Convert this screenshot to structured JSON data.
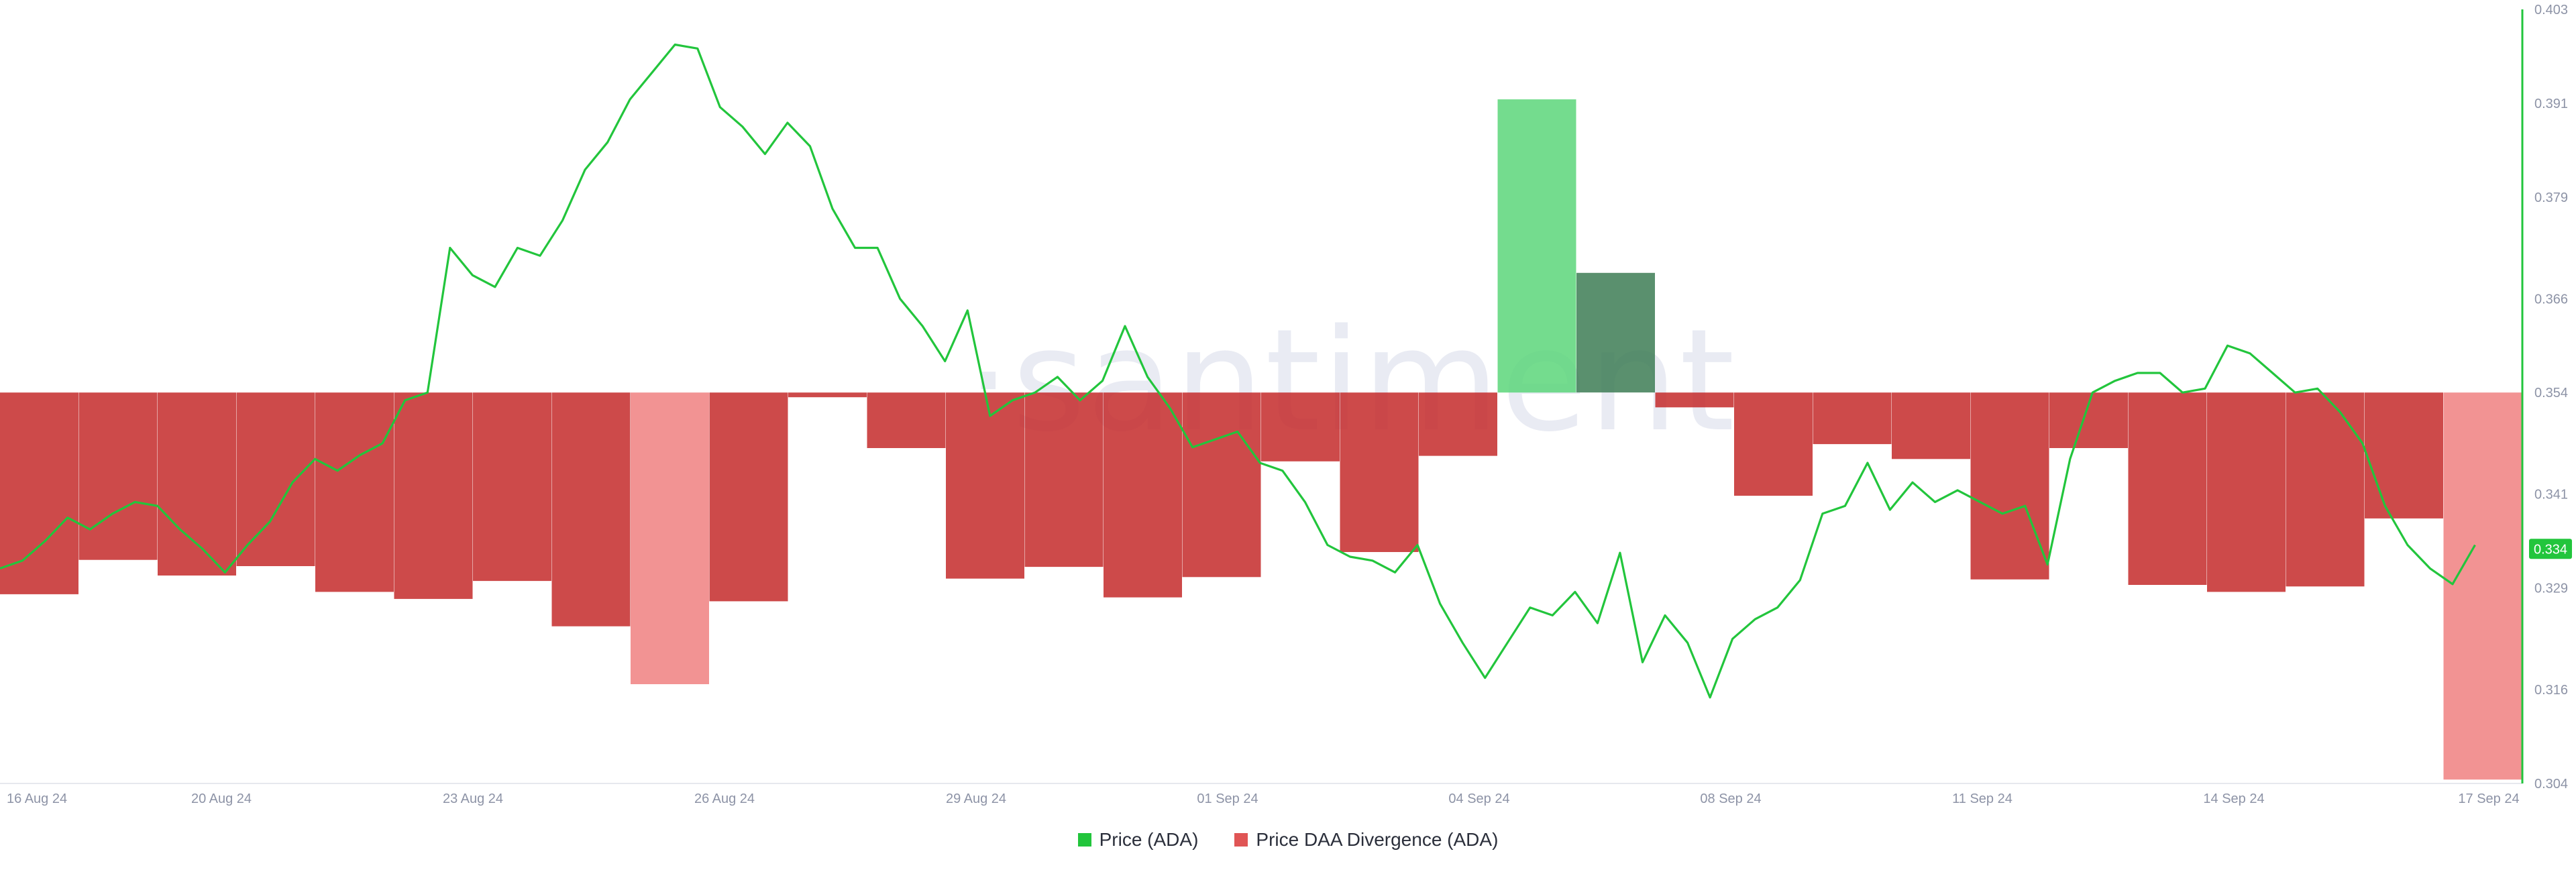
{
  "colors": {
    "price": "#22c53c",
    "divergence_neg": "#c42a2a",
    "divergence_neg_light": "#f08080",
    "divergence_pos": "#5cd67a",
    "divergence_pos_dark": "#3d7d55",
    "axis_text": "#8d93a6",
    "watermark": "#e9ebf3"
  },
  "watermark": "·santiment",
  "chart_data": {
    "type": "bar+line",
    "grid": false,
    "legend_position": "bottom-center",
    "x_ticks": [
      "16 Aug 24",
      "20 Aug 24",
      "23 Aug 24",
      "26 Aug 24",
      "29 Aug 24",
      "01 Sep 24",
      "04 Sep 24",
      "08 Sep 24",
      "11 Sep 24",
      "14 Sep 24",
      "17 Sep 24"
    ],
    "y_axis": {
      "side": "right",
      "ylim": [
        0.304,
        0.403
      ],
      "ticks": [
        "0.403",
        "0.391",
        "0.379",
        "0.366",
        "0.354",
        "0.341",
        "0.329",
        "0.316",
        "0.304"
      ],
      "current_value_label": "0.334"
    },
    "series": [
      {
        "name": "Price (ADA)",
        "kind": "line",
        "x_start_day": 0,
        "x_end_day": 31.4,
        "values": [
          0.3315,
          0.3325,
          0.335,
          0.338,
          0.3365,
          0.3385,
          0.34,
          0.3395,
          0.3365,
          0.334,
          0.331,
          0.3345,
          0.3375,
          0.3425,
          0.3455,
          0.344,
          0.346,
          0.3475,
          0.353,
          0.354,
          0.3725,
          0.369,
          0.3675,
          0.3725,
          0.3715,
          0.376,
          0.3825,
          0.386,
          0.3915,
          0.395,
          0.3985,
          0.398,
          0.3905,
          0.388,
          0.3845,
          0.3885,
          0.3855,
          0.3775,
          0.3725,
          0.3725,
          0.366,
          0.3625,
          0.358,
          0.3645,
          0.351,
          0.353,
          0.354,
          0.356,
          0.353,
          0.3555,
          0.3625,
          0.356,
          0.352,
          0.347,
          0.348,
          0.349,
          0.345,
          0.344,
          0.34,
          0.3345,
          0.333,
          0.3325,
          0.331,
          0.3345,
          0.327,
          0.322,
          0.3175,
          0.322,
          0.3265,
          0.3255,
          0.3285,
          0.3245,
          0.3335,
          0.3195,
          0.3255,
          0.322,
          0.315,
          0.3225,
          0.325,
          0.3265,
          0.33,
          0.3385,
          0.3395,
          0.345,
          0.339,
          0.3425,
          0.34,
          0.3415,
          0.34,
          0.3385,
          0.3395,
          0.332,
          0.3455,
          0.354,
          0.3555,
          0.3565,
          0.3565,
          0.354,
          0.3545,
          0.36,
          0.359,
          0.3565,
          0.354,
          0.3545,
          0.3515,
          0.3475,
          0.3395,
          0.3345,
          0.3315,
          0.3295,
          0.3345
        ]
      },
      {
        "name": "Price DAA Divergence (ADA)",
        "kind": "bar",
        "baseline": 0.354,
        "bar_width_days": 1,
        "x_start_day": 0,
        "values": [
          0.3282,
          0.3326,
          0.3306,
          0.3318,
          0.3285,
          0.3276,
          0.3299,
          0.3241,
          0.3167,
          0.3273,
          0.3534,
          0.3469,
          0.3302,
          0.3317,
          0.3278,
          0.3304,
          0.3452,
          0.3336,
          0.3459,
          0.3915,
          0.3693,
          0.3521,
          0.3408,
          0.3474,
          0.3455,
          0.3301,
          0.3469,
          0.3294,
          0.3285,
          0.3292,
          0.3379,
          0.3045
        ],
        "highlight": {
          "light_red_index": [
            8,
            31
          ],
          "dark_green_index": [
            20
          ]
        }
      }
    ],
    "legend": [
      "Price (ADA)",
      "Price DAA Divergence (ADA)"
    ]
  }
}
